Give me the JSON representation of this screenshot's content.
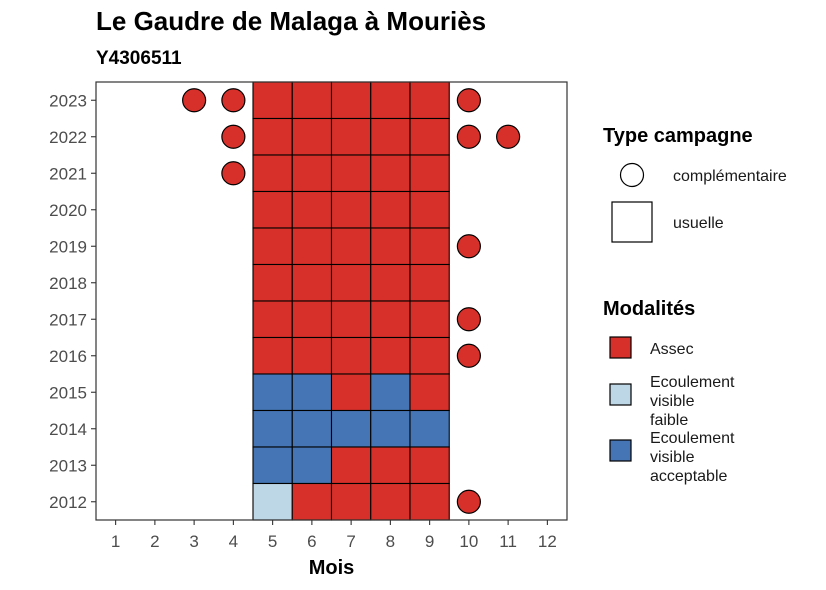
{
  "chart_data": {
    "type": "heatmap",
    "title": "Le Gaudre de Malaga à Mouriès",
    "subtitle": "Y4306511",
    "xlabel": "Mois",
    "ylabel": "",
    "x_ticks": [
      "1",
      "2",
      "3",
      "4",
      "5",
      "6",
      "7",
      "8",
      "9",
      "10",
      "11",
      "12"
    ],
    "y_ticks": [
      "2023",
      "2022",
      "2021",
      "2020",
      "2019",
      "2018",
      "2017",
      "2016",
      "2015",
      "2014",
      "2013",
      "2012"
    ],
    "xlim": [
      0.5,
      12.5
    ],
    "ylim": [
      2011.5,
      2023.5
    ],
    "grid": false,
    "legend_position": "right",
    "colors": {
      "Assec": "#d7302a",
      "Ecoulement visible faible": "#bdd7e7",
      "Ecoulement visible acceptable": "#4575b4"
    },
    "legend_campagne": {
      "title": "Type campagne",
      "items": [
        {
          "shape": "circle",
          "label": "complémentaire"
        },
        {
          "shape": "square",
          "label": "usuelle"
        }
      ]
    },
    "legend_modalites": {
      "title": "Modalités",
      "items": [
        {
          "key": "Assec",
          "lines": [
            "Assec"
          ]
        },
        {
          "key": "Ecoulement visible faible",
          "lines": [
            "Ecoulement",
            "visible",
            "faible"
          ]
        },
        {
          "key": "Ecoulement visible acceptable",
          "lines": [
            "Ecoulement",
            "visible",
            "acceptable"
          ]
        }
      ]
    },
    "usuelle": [
      {
        "year": 2023,
        "month": 5,
        "value": "Assec"
      },
      {
        "year": 2023,
        "month": 6,
        "value": "Assec"
      },
      {
        "year": 2023,
        "month": 7,
        "value": "Assec"
      },
      {
        "year": 2023,
        "month": 8,
        "value": "Assec"
      },
      {
        "year": 2023,
        "month": 9,
        "value": "Assec"
      },
      {
        "year": 2022,
        "month": 5,
        "value": "Assec"
      },
      {
        "year": 2022,
        "month": 6,
        "value": "Assec"
      },
      {
        "year": 2022,
        "month": 7,
        "value": "Assec"
      },
      {
        "year": 2022,
        "month": 8,
        "value": "Assec"
      },
      {
        "year": 2022,
        "month": 9,
        "value": "Assec"
      },
      {
        "year": 2021,
        "month": 5,
        "value": "Assec"
      },
      {
        "year": 2021,
        "month": 6,
        "value": "Assec"
      },
      {
        "year": 2021,
        "month": 7,
        "value": "Assec"
      },
      {
        "year": 2021,
        "month": 8,
        "value": "Assec"
      },
      {
        "year": 2021,
        "month": 9,
        "value": "Assec"
      },
      {
        "year": 2020,
        "month": 5,
        "value": "Assec"
      },
      {
        "year": 2020,
        "month": 6,
        "value": "Assec"
      },
      {
        "year": 2020,
        "month": 7,
        "value": "Assec"
      },
      {
        "year": 2020,
        "month": 8,
        "value": "Assec"
      },
      {
        "year": 2020,
        "month": 9,
        "value": "Assec"
      },
      {
        "year": 2019,
        "month": 5,
        "value": "Assec"
      },
      {
        "year": 2019,
        "month": 6,
        "value": "Assec"
      },
      {
        "year": 2019,
        "month": 7,
        "value": "Assec"
      },
      {
        "year": 2019,
        "month": 8,
        "value": "Assec"
      },
      {
        "year": 2019,
        "month": 9,
        "value": "Assec"
      },
      {
        "year": 2018,
        "month": 5,
        "value": "Assec"
      },
      {
        "year": 2018,
        "month": 6,
        "value": "Assec"
      },
      {
        "year": 2018,
        "month": 7,
        "value": "Assec"
      },
      {
        "year": 2018,
        "month": 8,
        "value": "Assec"
      },
      {
        "year": 2018,
        "month": 9,
        "value": "Assec"
      },
      {
        "year": 2017,
        "month": 5,
        "value": "Assec"
      },
      {
        "year": 2017,
        "month": 6,
        "value": "Assec"
      },
      {
        "year": 2017,
        "month": 7,
        "value": "Assec"
      },
      {
        "year": 2017,
        "month": 8,
        "value": "Assec"
      },
      {
        "year": 2017,
        "month": 9,
        "value": "Assec"
      },
      {
        "year": 2016,
        "month": 5,
        "value": "Assec"
      },
      {
        "year": 2016,
        "month": 6,
        "value": "Assec"
      },
      {
        "year": 2016,
        "month": 7,
        "value": "Assec"
      },
      {
        "year": 2016,
        "month": 8,
        "value": "Assec"
      },
      {
        "year": 2016,
        "month": 9,
        "value": "Assec"
      },
      {
        "year": 2015,
        "month": 5,
        "value": "Ecoulement visible acceptable"
      },
      {
        "year": 2015,
        "month": 6,
        "value": "Ecoulement visible acceptable"
      },
      {
        "year": 2015,
        "month": 7,
        "value": "Assec"
      },
      {
        "year": 2015,
        "month": 8,
        "value": "Ecoulement visible acceptable"
      },
      {
        "year": 2015,
        "month": 9,
        "value": "Assec"
      },
      {
        "year": 2014,
        "month": 5,
        "value": "Ecoulement visible acceptable"
      },
      {
        "year": 2014,
        "month": 6,
        "value": "Ecoulement visible acceptable"
      },
      {
        "year": 2014,
        "month": 7,
        "value": "Ecoulement visible acceptable"
      },
      {
        "year": 2014,
        "month": 8,
        "value": "Ecoulement visible acceptable"
      },
      {
        "year": 2014,
        "month": 9,
        "value": "Ecoulement visible acceptable"
      },
      {
        "year": 2013,
        "month": 5,
        "value": "Ecoulement visible acceptable"
      },
      {
        "year": 2013,
        "month": 6,
        "value": "Ecoulement visible acceptable"
      },
      {
        "year": 2013,
        "month": 7,
        "value": "Assec"
      },
      {
        "year": 2013,
        "month": 8,
        "value": "Assec"
      },
      {
        "year": 2013,
        "month": 9,
        "value": "Assec"
      },
      {
        "year": 2012,
        "month": 5,
        "value": "Ecoulement visible faible"
      },
      {
        "year": 2012,
        "month": 6,
        "value": "Assec"
      },
      {
        "year": 2012,
        "month": 7,
        "value": "Assec"
      },
      {
        "year": 2012,
        "month": 8,
        "value": "Assec"
      },
      {
        "year": 2012,
        "month": 9,
        "value": "Assec"
      }
    ],
    "complementaire": [
      {
        "year": 2023,
        "month": 3,
        "value": "Assec"
      },
      {
        "year": 2023,
        "month": 4,
        "value": "Assec"
      },
      {
        "year": 2023,
        "month": 10,
        "value": "Assec"
      },
      {
        "year": 2022,
        "month": 4,
        "value": "Assec"
      },
      {
        "year": 2022,
        "month": 10,
        "value": "Assec"
      },
      {
        "year": 2022,
        "month": 11,
        "value": "Assec"
      },
      {
        "year": 2021,
        "month": 4,
        "value": "Assec"
      },
      {
        "year": 2019,
        "month": 10,
        "value": "Assec"
      },
      {
        "year": 2017,
        "month": 10,
        "value": "Assec"
      },
      {
        "year": 2016,
        "month": 10,
        "value": "Assec"
      },
      {
        "year": 2012,
        "month": 10,
        "value": "Assec"
      }
    ]
  }
}
